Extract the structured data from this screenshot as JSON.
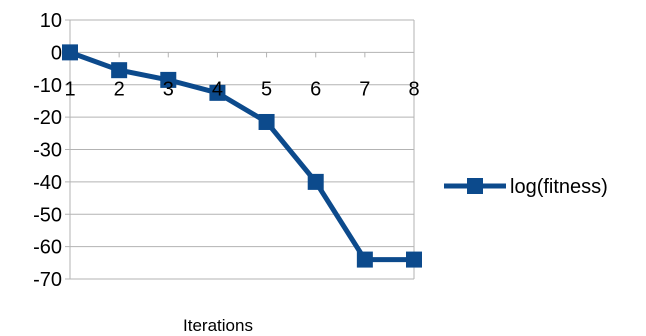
{
  "chart_data": {
    "type": "line",
    "title": "",
    "xlabel": "Iterations",
    "ylabel": "",
    "x": [
      1,
      2,
      3,
      4,
      5,
      6,
      7,
      8
    ],
    "x_tick_labels": [
      "1",
      "2",
      "3",
      "4",
      "5",
      "6",
      "7",
      "8"
    ],
    "ylim": [
      -70,
      10
    ],
    "y_ticks": [
      10,
      0,
      -10,
      -20,
      -30,
      -40,
      -50,
      -60,
      -70
    ],
    "y_tick_labels": [
      "10",
      "0",
      "-10",
      "-20",
      "-30",
      "-40",
      "-50",
      "-60",
      "-70"
    ],
    "grid": true,
    "legend_position": "right",
    "series": [
      {
        "name": "log(fitness)",
        "values": [
          0,
          -5.5,
          -8.5,
          -12.5,
          -21.5,
          -40,
          -64,
          -64
        ],
        "color": "#0c4a8c",
        "marker": "square"
      }
    ]
  }
}
